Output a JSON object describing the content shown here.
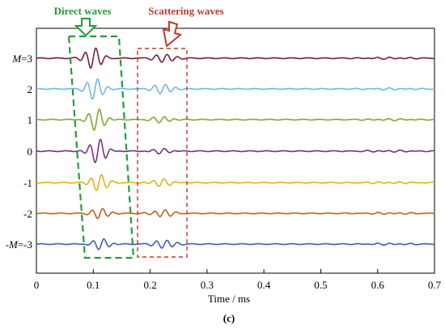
{
  "chart_data": {
    "type": "line",
    "title": "",
    "xlabel": "Time / ms",
    "ylabel": "",
    "xlim": [
      0,
      0.7
    ],
    "x_ticks": [
      "0",
      "0.1",
      "0.2",
      "0.3",
      "0.4",
      "0.5",
      "0.6",
      "0.7"
    ],
    "x_tick_values": [
      0,
      0.1,
      0.2,
      0.3,
      0.4,
      0.5,
      0.6,
      0.7
    ],
    "panel_label": "(c)",
    "grid": false,
    "series": [
      {
        "label": "M=3",
        "label_italic": "M",
        "label_rest": "=3",
        "color": "#7B1E3A",
        "direct_amp": 0.9,
        "direct_center": 0.1,
        "scatter_amp": 0.35,
        "scatter_center": 0.225
      },
      {
        "label": "2",
        "label_italic": "",
        "label_rest": "2",
        "color": "#6FB8E0",
        "direct_amp": 0.9,
        "direct_center": 0.103,
        "scatter_amp": 0.4,
        "scatter_center": 0.222
      },
      {
        "label": "1",
        "label_italic": "",
        "label_rest": "1",
        "color": "#7DAA2E",
        "direct_amp": 0.9,
        "direct_center": 0.106,
        "scatter_amp": 0.25,
        "scatter_center": 0.22
      },
      {
        "label": "0",
        "label_italic": "",
        "label_rest": "0",
        "color": "#7B2D8E",
        "direct_amp": 1.0,
        "direct_center": 0.108,
        "scatter_amp": 0.2,
        "scatter_center": 0.22
      },
      {
        "label": "-1",
        "label_italic": "",
        "label_rest": "-1",
        "color": "#E0B21A",
        "direct_amp": 0.7,
        "direct_center": 0.11,
        "scatter_amp": 0.3,
        "scatter_center": 0.22
      },
      {
        "label": "-2",
        "label_italic": "",
        "label_rest": "-2",
        "color": "#B5651D",
        "direct_amp": 0.45,
        "direct_center": 0.112,
        "scatter_amp": 0.3,
        "scatter_center": 0.222
      },
      {
        "label": "-M=-3",
        "label_italic": "M",
        "label_rest": "=-3",
        "label_prefix": "-",
        "color": "#3E5FB0",
        "direct_amp": 0.45,
        "direct_center": 0.114,
        "scatter_amp": 0.35,
        "scatter_center": 0.225
      }
    ],
    "annotations": [
      {
        "text": "Direct waves",
        "color": "#1E9E3A",
        "box_color": "#1E9E3A"
      },
      {
        "text": "Scattering waves",
        "color": "#C0392B",
        "box_color": "#C0392B"
      }
    ]
  }
}
